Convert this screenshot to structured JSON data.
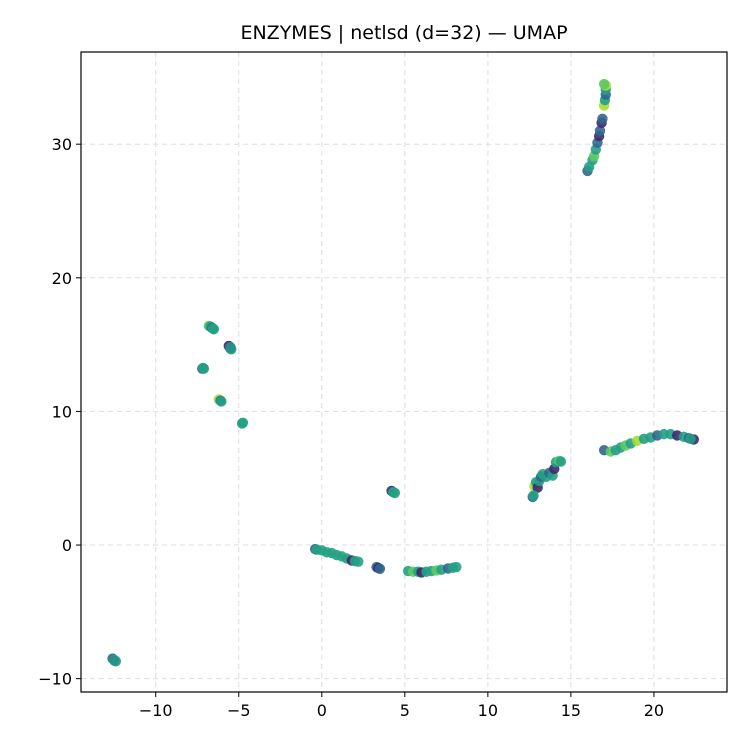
{
  "chart_data": {
    "type": "scatter",
    "title": "ENZYMES | netlsd (d=32) — UMAP",
    "xlabel": "",
    "ylabel": "",
    "xlim": [
      -14.5,
      24.4
    ],
    "ylim": [
      -11.0,
      36.9
    ],
    "xticks": [
      -10,
      -5,
      0,
      5,
      10,
      15,
      20
    ],
    "yticks": [
      -10,
      0,
      10,
      20,
      30
    ],
    "xtick_labels": [
      "−10",
      "−5",
      "0",
      "5",
      "10",
      "15",
      "20"
    ],
    "ytick_labels": [
      "−10",
      "0",
      "10",
      "20",
      "30"
    ],
    "grid": true,
    "legend": "none",
    "colormap": "viridis",
    "colors": {
      "dark_purple": "#3b2a6e",
      "blue": "#31668e",
      "teal": "#23a083",
      "green": "#5ec962",
      "yellow_green": "#a8db34"
    },
    "points": [
      {
        "x": -12.6,
        "y": -8.5,
        "c": "#31668e"
      },
      {
        "x": -12.5,
        "y": -8.6,
        "c": "#23a083"
      },
      {
        "x": -12.4,
        "y": -8.7,
        "c": "#23a083"
      },
      {
        "x": -12.5,
        "y": -8.65,
        "c": "#2a8f8a"
      },
      {
        "x": -7.2,
        "y": 13.2,
        "c": "#31668e"
      },
      {
        "x": -7.15,
        "y": 13.25,
        "c": "#23a083"
      },
      {
        "x": -7.1,
        "y": 13.2,
        "c": "#23a083"
      },
      {
        "x": -6.8,
        "y": 16.4,
        "c": "#5ec962"
      },
      {
        "x": -6.7,
        "y": 16.35,
        "c": "#23a083"
      },
      {
        "x": -6.6,
        "y": 16.25,
        "c": "#31668e"
      },
      {
        "x": -6.5,
        "y": 16.15,
        "c": "#23a083"
      },
      {
        "x": -6.55,
        "y": 16.2,
        "c": "#23a083"
      },
      {
        "x": -6.2,
        "y": 10.9,
        "c": "#a8db34"
      },
      {
        "x": -6.1,
        "y": 10.8,
        "c": "#31668e"
      },
      {
        "x": -6.05,
        "y": 10.75,
        "c": "#23a083"
      },
      {
        "x": -5.6,
        "y": 14.9,
        "c": "#3b2a6e"
      },
      {
        "x": -5.5,
        "y": 14.7,
        "c": "#31668e"
      },
      {
        "x": -5.45,
        "y": 14.65,
        "c": "#23a083"
      },
      {
        "x": -5.5,
        "y": 14.8,
        "c": "#2a8f8a"
      },
      {
        "x": -4.8,
        "y": 9.1,
        "c": "#23a083"
      },
      {
        "x": -4.75,
        "y": 9.15,
        "c": "#23a083"
      },
      {
        "x": -0.4,
        "y": -0.3,
        "c": "#31668e"
      },
      {
        "x": -0.3,
        "y": -0.35,
        "c": "#23a083"
      },
      {
        "x": 0.0,
        "y": -0.4,
        "c": "#23a083"
      },
      {
        "x": 0.3,
        "y": -0.55,
        "c": "#23a083"
      },
      {
        "x": 0.6,
        "y": -0.6,
        "c": "#23a083"
      },
      {
        "x": 0.9,
        "y": -0.75,
        "c": "#23a083"
      },
      {
        "x": 1.2,
        "y": -0.85,
        "c": "#23a083"
      },
      {
        "x": 1.5,
        "y": -1.0,
        "c": "#23a083"
      },
      {
        "x": 1.8,
        "y": -1.15,
        "c": "#3b2a6e"
      },
      {
        "x": 2.0,
        "y": -1.2,
        "c": "#23a083"
      },
      {
        "x": 2.2,
        "y": -1.25,
        "c": "#23a083"
      },
      {
        "x": 3.3,
        "y": -1.65,
        "c": "#31668e"
      },
      {
        "x": 3.4,
        "y": -1.72,
        "c": "#3b2a6e"
      },
      {
        "x": 3.5,
        "y": -1.78,
        "c": "#31668e"
      },
      {
        "x": 4.2,
        "y": 4.05,
        "c": "#3b2a6e"
      },
      {
        "x": 4.3,
        "y": 3.95,
        "c": "#23a083"
      },
      {
        "x": 4.4,
        "y": 3.9,
        "c": "#23a083"
      },
      {
        "x": 5.2,
        "y": -1.95,
        "c": "#23a083"
      },
      {
        "x": 5.5,
        "y": -2.0,
        "c": "#5ec962"
      },
      {
        "x": 5.8,
        "y": -2.0,
        "c": "#23a083"
      },
      {
        "x": 6.0,
        "y": -2.05,
        "c": "#3b2a6e"
      },
      {
        "x": 6.3,
        "y": -2.0,
        "c": "#23a083"
      },
      {
        "x": 6.6,
        "y": -1.95,
        "c": "#23a083"
      },
      {
        "x": 6.9,
        "y": -1.9,
        "c": "#5ec962"
      },
      {
        "x": 7.2,
        "y": -1.85,
        "c": "#23a083"
      },
      {
        "x": 7.6,
        "y": -1.75,
        "c": "#31668e"
      },
      {
        "x": 7.9,
        "y": -1.7,
        "c": "#23a083"
      },
      {
        "x": 8.1,
        "y": -1.65,
        "c": "#23a083"
      },
      {
        "x": 12.7,
        "y": 3.6,
        "c": "#31668e"
      },
      {
        "x": 12.8,
        "y": 4.4,
        "c": "#a8db34"
      },
      {
        "x": 12.9,
        "y": 4.7,
        "c": "#23a083"
      },
      {
        "x": 13.0,
        "y": 4.3,
        "c": "#3b2a6e"
      },
      {
        "x": 13.1,
        "y": 4.8,
        "c": "#23a083"
      },
      {
        "x": 13.2,
        "y": 5.1,
        "c": "#31668e"
      },
      {
        "x": 13.3,
        "y": 5.3,
        "c": "#23a083"
      },
      {
        "x": 13.5,
        "y": 5.1,
        "c": "#23a083"
      },
      {
        "x": 13.7,
        "y": 5.4,
        "c": "#31668e"
      },
      {
        "x": 13.9,
        "y": 5.2,
        "c": "#23a083"
      },
      {
        "x": 14.0,
        "y": 5.7,
        "c": "#3b2a6e"
      },
      {
        "x": 14.1,
        "y": 6.2,
        "c": "#23a083"
      },
      {
        "x": 14.3,
        "y": 6.3,
        "c": "#5ec962"
      },
      {
        "x": 14.4,
        "y": 6.25,
        "c": "#23a083"
      },
      {
        "x": 12.75,
        "y": 3.7,
        "c": "#23a083"
      },
      {
        "x": 17.0,
        "y": 7.1,
        "c": "#31668e"
      },
      {
        "x": 17.4,
        "y": 7.0,
        "c": "#5ec962"
      },
      {
        "x": 17.7,
        "y": 7.1,
        "c": "#23a083"
      },
      {
        "x": 18.0,
        "y": 7.3,
        "c": "#23a083"
      },
      {
        "x": 18.3,
        "y": 7.45,
        "c": "#5ec962"
      },
      {
        "x": 18.6,
        "y": 7.6,
        "c": "#23a083"
      },
      {
        "x": 19.0,
        "y": 7.8,
        "c": "#a8db34"
      },
      {
        "x": 19.4,
        "y": 7.95,
        "c": "#23a083"
      },
      {
        "x": 19.8,
        "y": 8.05,
        "c": "#23a083"
      },
      {
        "x": 20.2,
        "y": 8.2,
        "c": "#31668e"
      },
      {
        "x": 20.6,
        "y": 8.3,
        "c": "#23a083"
      },
      {
        "x": 21.0,
        "y": 8.3,
        "c": "#23a083"
      },
      {
        "x": 21.4,
        "y": 8.2,
        "c": "#3b2a6e"
      },
      {
        "x": 21.8,
        "y": 8.1,
        "c": "#23a083"
      },
      {
        "x": 22.1,
        "y": 8.0,
        "c": "#31668e"
      },
      {
        "x": 22.4,
        "y": 7.9,
        "c": "#3b2a6e"
      },
      {
        "x": 22.2,
        "y": 7.95,
        "c": "#23a083"
      },
      {
        "x": 16.0,
        "y": 28.0,
        "c": "#31668e"
      },
      {
        "x": 16.1,
        "y": 28.3,
        "c": "#23a083"
      },
      {
        "x": 16.3,
        "y": 28.8,
        "c": "#23a083"
      },
      {
        "x": 16.4,
        "y": 29.1,
        "c": "#5ec962"
      },
      {
        "x": 16.5,
        "y": 29.6,
        "c": "#23a083"
      },
      {
        "x": 16.6,
        "y": 30.1,
        "c": "#31668e"
      },
      {
        "x": 16.7,
        "y": 30.6,
        "c": "#3b2a6e"
      },
      {
        "x": 16.75,
        "y": 31.0,
        "c": "#31668e"
      },
      {
        "x": 16.85,
        "y": 31.6,
        "c": "#3b2a6e"
      },
      {
        "x": 16.9,
        "y": 31.9,
        "c": "#31668e"
      },
      {
        "x": 17.0,
        "y": 32.9,
        "c": "#a8db34"
      },
      {
        "x": 17.05,
        "y": 33.3,
        "c": "#23a083"
      },
      {
        "x": 17.1,
        "y": 33.7,
        "c": "#31668e"
      },
      {
        "x": 17.1,
        "y": 34.1,
        "c": "#23a083"
      },
      {
        "x": 17.1,
        "y": 34.4,
        "c": "#a8db34"
      },
      {
        "x": 17.0,
        "y": 34.5,
        "c": "#5ec962"
      }
    ]
  }
}
